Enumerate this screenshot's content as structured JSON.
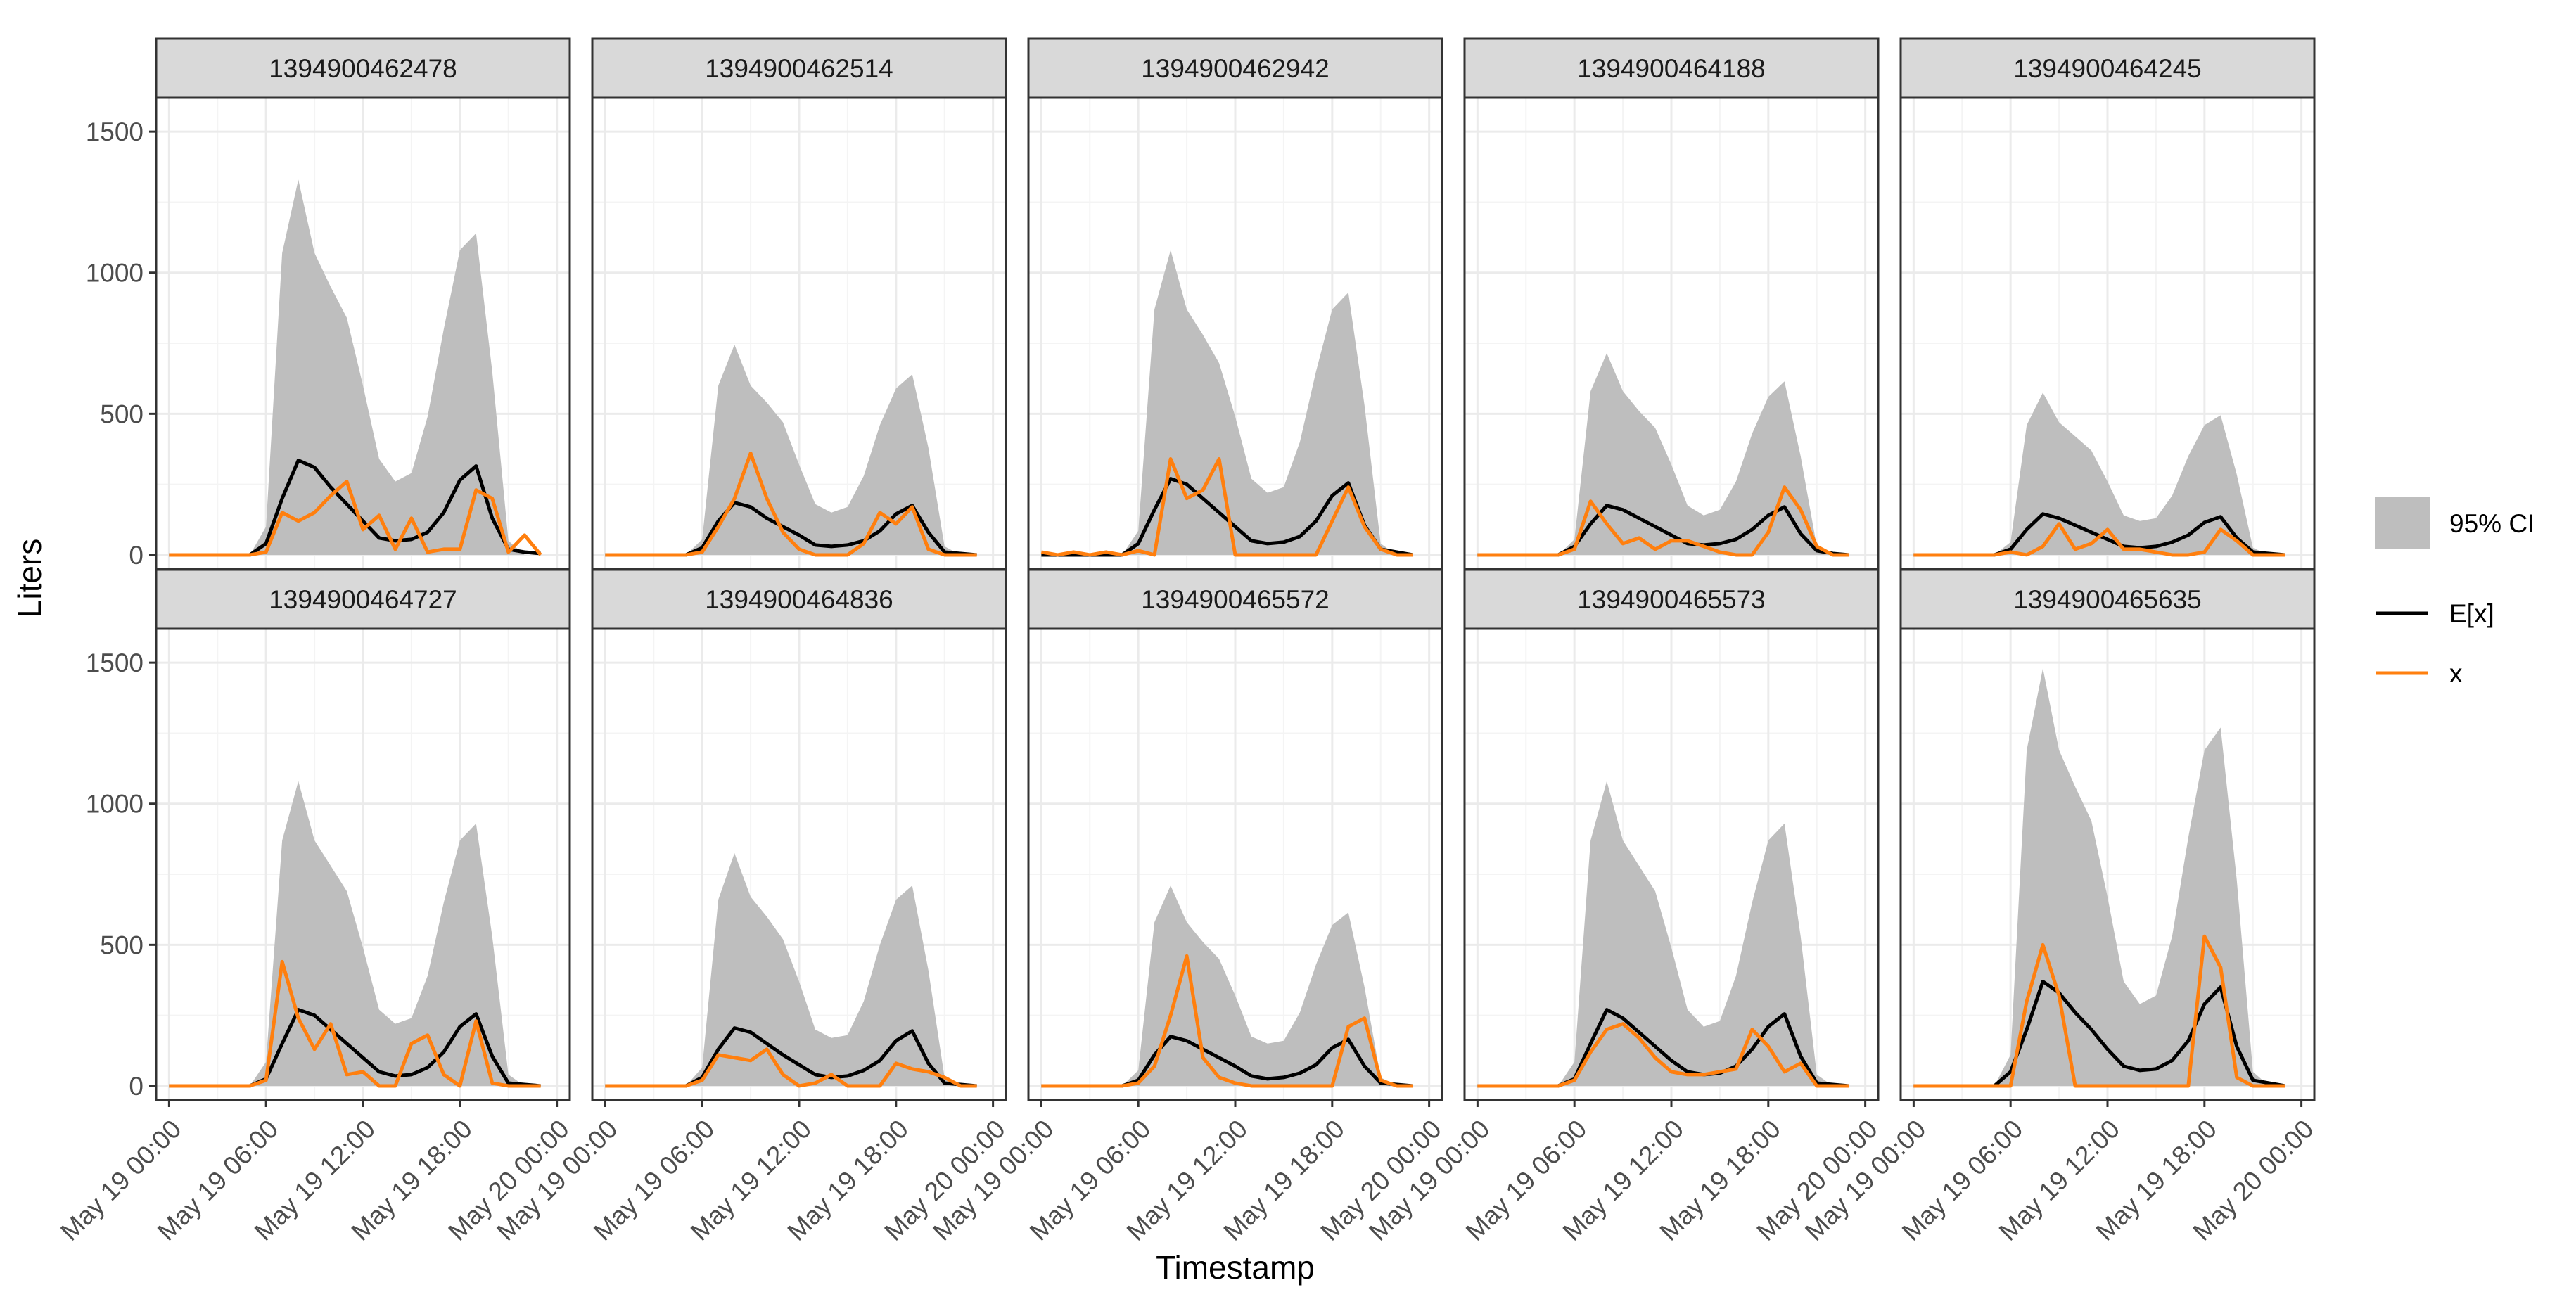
{
  "chart_data": {
    "type": "line",
    "layout": "facet-grid",
    "xlabel": "Timestamp",
    "ylabel": "Liters",
    "ylim": [
      -50,
      1620
    ],
    "y_ticks": [
      0,
      500,
      1000,
      1500
    ],
    "y_tick_labels": [
      "0",
      "500",
      "1000",
      "1500"
    ],
    "x_range_hours": [
      -0.8,
      24.8
    ],
    "x_ticks_hours": [
      0,
      6,
      12,
      18,
      24
    ],
    "x_tick_labels": [
      "May 19 00:00",
      "May 19 06:00",
      "May 19 12:00",
      "May 19 18:00",
      "May 20 00:00"
    ],
    "x_hours": [
      0,
      1,
      2,
      3,
      4,
      5,
      6,
      7,
      8,
      9,
      10,
      11,
      12,
      13,
      14,
      15,
      16,
      17,
      18,
      19,
      20,
      21,
      22,
      23
    ],
    "legend": {
      "position": "right",
      "ci_label": "95% CI",
      "expected_label": "E[x]",
      "observed_label": "x"
    },
    "colors": {
      "ci_fill": "#bebebe",
      "expected_line": "#000000",
      "observed_line": "#ff7f0e",
      "strip_fill": "#d9d9d9",
      "grid_major": "#ebebeb",
      "grid_minor": "#f4f4f4",
      "panel_border": "#333333"
    },
    "panels": [
      {
        "id": "1394900462478",
        "ci_upper": [
          0,
          0,
          0,
          0,
          0,
          0,
          100,
          1070,
          1330,
          1070,
          950,
          840,
          600,
          340,
          260,
          290,
          490,
          800,
          1080,
          1140,
          650,
          50,
          0,
          0
        ],
        "expected": [
          0,
          0,
          0,
          0,
          0,
          0,
          40,
          200,
          335,
          310,
          240,
          180,
          120,
          60,
          50,
          55,
          80,
          150,
          265,
          315,
          130,
          20,
          10,
          5
        ],
        "observed": [
          0,
          0,
          0,
          0,
          0,
          0,
          10,
          150,
          120,
          150,
          210,
          260,
          90,
          140,
          20,
          130,
          10,
          20,
          20,
          230,
          200,
          10,
          70,
          0
        ]
      },
      {
        "id": "1394900462514",
        "ci_upper": [
          0,
          0,
          0,
          0,
          0,
          0,
          55,
          600,
          745,
          600,
          540,
          470,
          320,
          180,
          150,
          170,
          280,
          460,
          590,
          640,
          380,
          30,
          0,
          0
        ],
        "expected": [
          0,
          0,
          0,
          0,
          0,
          0,
          25,
          120,
          185,
          170,
          130,
          100,
          70,
          35,
          30,
          35,
          50,
          85,
          145,
          175,
          80,
          10,
          5,
          0
        ],
        "observed": [
          0,
          0,
          0,
          0,
          0,
          0,
          10,
          100,
          200,
          360,
          200,
          80,
          20,
          0,
          0,
          0,
          40,
          150,
          110,
          170,
          20,
          0,
          0,
          0
        ]
      },
      {
        "id": "1394900462942",
        "ci_upper": [
          0,
          0,
          0,
          0,
          0,
          0,
          85,
          870,
          1080,
          870,
          780,
          680,
          490,
          270,
          220,
          240,
          400,
          650,
          870,
          930,
          530,
          40,
          0,
          0
        ],
        "expected": [
          0,
          0,
          0,
          0,
          0,
          0,
          40,
          160,
          270,
          250,
          200,
          150,
          100,
          50,
          40,
          45,
          65,
          120,
          210,
          255,
          105,
          20,
          10,
          0
        ],
        "observed": [
          10,
          0,
          10,
          0,
          10,
          0,
          15,
          0,
          340,
          200,
          230,
          340,
          0,
          0,
          0,
          0,
          0,
          0,
          120,
          240,
          100,
          20,
          0,
          0
        ]
      },
      {
        "id": "1394900464188",
        "ci_upper": [
          0,
          0,
          0,
          0,
          0,
          0,
          55,
          580,
          715,
          580,
          510,
          450,
          320,
          175,
          140,
          160,
          260,
          430,
          560,
          615,
          350,
          30,
          0,
          0
        ],
        "expected": [
          0,
          0,
          0,
          0,
          0,
          0,
          30,
          110,
          175,
          160,
          130,
          100,
          70,
          40,
          35,
          40,
          55,
          90,
          140,
          170,
          75,
          15,
          5,
          0
        ],
        "observed": [
          0,
          0,
          0,
          0,
          0,
          0,
          20,
          190,
          110,
          40,
          60,
          20,
          50,
          50,
          30,
          10,
          0,
          0,
          80,
          240,
          160,
          30,
          0,
          0
        ]
      },
      {
        "id": "1394900464245",
        "ci_upper": [
          0,
          0,
          0,
          0,
          0,
          0,
          45,
          460,
          575,
          470,
          420,
          370,
          260,
          140,
          120,
          130,
          210,
          350,
          460,
          495,
          285,
          25,
          0,
          0
        ],
        "expected": [
          0,
          0,
          0,
          0,
          0,
          0,
          20,
          90,
          145,
          130,
          105,
          80,
          55,
          30,
          25,
          30,
          45,
          70,
          115,
          135,
          60,
          10,
          5,
          0
        ],
        "observed": [
          0,
          0,
          0,
          0,
          0,
          0,
          10,
          0,
          30,
          110,
          20,
          40,
          90,
          20,
          20,
          10,
          0,
          0,
          10,
          90,
          50,
          0,
          0,
          0
        ]
      },
      {
        "id": "1394900464727",
        "ci_upper": [
          0,
          0,
          0,
          0,
          0,
          0,
          85,
          870,
          1080,
          870,
          780,
          690,
          490,
          270,
          220,
          240,
          390,
          650,
          870,
          930,
          530,
          40,
          0,
          0
        ],
        "expected": [
          0,
          0,
          0,
          0,
          0,
          0,
          25,
          150,
          270,
          250,
          200,
          150,
          100,
          50,
          35,
          40,
          65,
          120,
          210,
          255,
          105,
          10,
          5,
          0
        ],
        "observed": [
          0,
          0,
          0,
          0,
          0,
          0,
          20,
          440,
          240,
          130,
          220,
          40,
          50,
          0,
          0,
          150,
          180,
          40,
          0,
          230,
          10,
          0,
          0,
          0
        ]
      },
      {
        "id": "1394900464836",
        "ci_upper": [
          0,
          0,
          0,
          0,
          0,
          0,
          65,
          660,
          825,
          670,
          600,
          520,
          370,
          200,
          170,
          180,
          300,
          500,
          660,
          710,
          410,
          30,
          0,
          0
        ],
        "expected": [
          0,
          0,
          0,
          0,
          0,
          0,
          30,
          130,
          205,
          190,
          150,
          110,
          75,
          40,
          30,
          35,
          55,
          90,
          160,
          195,
          80,
          10,
          5,
          0
        ],
        "observed": [
          0,
          0,
          0,
          0,
          0,
          0,
          20,
          110,
          100,
          90,
          130,
          40,
          0,
          10,
          40,
          0,
          0,
          0,
          80,
          60,
          50,
          30,
          0,
          0
        ]
      },
      {
        "id": "1394900465572",
        "ci_upper": [
          0,
          0,
          0,
          0,
          0,
          0,
          55,
          580,
          710,
          580,
          510,
          450,
          320,
          175,
          150,
          160,
          260,
          430,
          570,
          615,
          350,
          30,
          0,
          0
        ],
        "expected": [
          0,
          0,
          0,
          0,
          0,
          0,
          20,
          110,
          175,
          160,
          130,
          100,
          70,
          35,
          25,
          30,
          45,
          75,
          135,
          165,
          70,
          10,
          5,
          0
        ],
        "observed": [
          0,
          0,
          0,
          0,
          0,
          0,
          10,
          70,
          250,
          460,
          100,
          30,
          10,
          0,
          0,
          0,
          0,
          0,
          0,
          210,
          240,
          20,
          0,
          0
        ]
      },
      {
        "id": "1394900465573",
        "ci_upper": [
          0,
          0,
          0,
          0,
          0,
          0,
          85,
          870,
          1080,
          870,
          780,
          690,
          490,
          270,
          210,
          230,
          390,
          650,
          870,
          930,
          530,
          40,
          0,
          0
        ],
        "expected": [
          0,
          0,
          0,
          0,
          0,
          0,
          25,
          150,
          270,
          240,
          190,
          140,
          90,
          50,
          40,
          45,
          70,
          130,
          210,
          255,
          105,
          10,
          5,
          0
        ],
        "observed": [
          0,
          0,
          0,
          0,
          0,
          0,
          20,
          120,
          200,
          220,
          170,
          100,
          50,
          40,
          40,
          50,
          60,
          200,
          140,
          50,
          80,
          0,
          0,
          0
        ]
      },
      {
        "id": "1394900465635",
        "ci_upper": [
          0,
          0,
          0,
          0,
          0,
          0,
          110,
          1190,
          1480,
          1190,
          1060,
          940,
          670,
          370,
          290,
          320,
          530,
          880,
          1190,
          1270,
          730,
          50,
          0,
          0
        ],
        "expected": [
          0,
          0,
          0,
          0,
          0,
          0,
          50,
          200,
          370,
          330,
          260,
          200,
          130,
          70,
          55,
          60,
          90,
          160,
          290,
          350,
          140,
          20,
          10,
          0
        ],
        "observed": [
          0,
          0,
          0,
          0,
          0,
          0,
          0,
          300,
          500,
          320,
          0,
          0,
          0,
          0,
          0,
          0,
          0,
          0,
          530,
          420,
          30,
          0,
          0,
          0
        ]
      }
    ]
  }
}
